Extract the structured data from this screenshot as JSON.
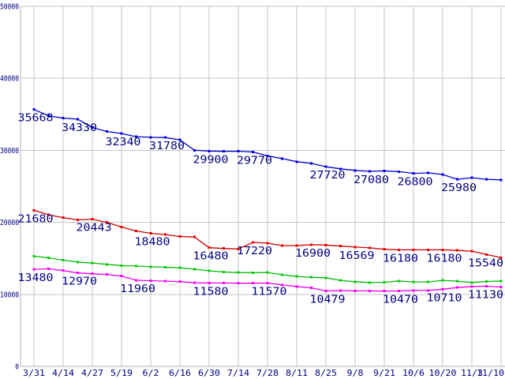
{
  "chart_data": {
    "type": "line",
    "title": "",
    "xlabel": "",
    "ylabel": "",
    "ylim": [
      0,
      50000
    ],
    "y_ticks": [
      0,
      10000,
      20000,
      30000,
      40000,
      50000
    ],
    "grid": true,
    "legend_position": "none",
    "num_points": 33,
    "x_tick_labels": [
      "3/31",
      "4/14",
      "4/27",
      "5/19",
      "6/2",
      "6/16",
      "6/30",
      "7/14",
      "7/28",
      "8/11",
      "8/25",
      "9/8",
      "9/21",
      "10/6",
      "10/20",
      "11/3",
      "11/10"
    ],
    "x_tick_point_indices": [
      1,
      3,
      5,
      7,
      9,
      11,
      13,
      15,
      17,
      19,
      21,
      23,
      25,
      27,
      29,
      31,
      33
    ],
    "note": "Four unlabeled-legend line series with square markers; on-chart value labels shown below selected points. Unlabeled point values estimated from plot.",
    "series": [
      {
        "name": "blue-series",
        "color": "#0000CC",
        "marker_color": "#0000E6",
        "values": [
          35668,
          34800,
          34470,
          34330,
          33160,
          32620,
          32340,
          31900,
          31810,
          31780,
          31450,
          30010,
          29900,
          29860,
          29880,
          29770,
          29230,
          28860,
          28420,
          28200,
          27720,
          27430,
          27220,
          27080,
          27150,
          27050,
          26800,
          26870,
          26650,
          25980,
          26200,
          25980,
          25900
        ],
        "labels": [
          {
            "point": 1,
            "text": "35668"
          },
          {
            "point": 4,
            "text": "34330"
          },
          {
            "point": 7,
            "text": "32340"
          },
          {
            "point": 10,
            "text": "31780"
          },
          {
            "point": 13,
            "text": "29900"
          },
          {
            "point": 16,
            "text": "29770"
          },
          {
            "point": 21,
            "text": "27720"
          },
          {
            "point": 24,
            "text": "27080"
          },
          {
            "point": 27,
            "text": "26800"
          },
          {
            "point": 30,
            "text": "25980"
          }
        ]
      },
      {
        "name": "red-series",
        "color": "#CC0000",
        "marker_color": "#EE0000",
        "values": [
          21680,
          21050,
          20650,
          20350,
          20443,
          20000,
          19350,
          18800,
          18480,
          18300,
          18040,
          17960,
          16480,
          16370,
          16300,
          17220,
          17110,
          16780,
          16780,
          16900,
          16850,
          16700,
          16569,
          16460,
          16260,
          16180,
          16180,
          16180,
          16180,
          16100,
          16000,
          15540,
          15100
        ],
        "labels": [
          {
            "point": 1,
            "text": "21680"
          },
          {
            "point": 5,
            "text": "20443"
          },
          {
            "point": 9,
            "text": "18480"
          },
          {
            "point": 13,
            "text": "16480"
          },
          {
            "point": 16,
            "text": "17220"
          },
          {
            "point": 20,
            "text": "16900"
          },
          {
            "point": 23,
            "text": "16569"
          },
          {
            "point": 26,
            "text": "16180"
          },
          {
            "point": 29,
            "text": "16180"
          },
          {
            "point": 32,
            "text": "15540"
          }
        ]
      },
      {
        "name": "green-series",
        "color": "#00BB00",
        "marker_color": "#00CC00",
        "values": [
          15300,
          15080,
          14750,
          14500,
          14340,
          14170,
          13990,
          13940,
          13830,
          13760,
          13700,
          13500,
          13270,
          13100,
          13030,
          13020,
          13040,
          12730,
          12480,
          12370,
          12300,
          11940,
          11750,
          11640,
          11670,
          11860,
          11720,
          11720,
          11940,
          11830,
          11650,
          11780,
          11860
        ],
        "labels": []
      },
      {
        "name": "magenta-series",
        "color": "#EE00EE",
        "marker_color": "#FF00FF",
        "values": [
          13480,
          13550,
          13300,
          12970,
          12860,
          12750,
          12540,
          11960,
          11900,
          11830,
          11760,
          11600,
          11580,
          11580,
          11550,
          11550,
          11570,
          11300,
          11100,
          10900,
          10479,
          10500,
          10480,
          10480,
          10450,
          10470,
          10540,
          10550,
          10710,
          10940,
          11100,
          11130,
          11020
        ],
        "labels": [
          {
            "point": 1,
            "text": "13480"
          },
          {
            "point": 4,
            "text": "12970"
          },
          {
            "point": 8,
            "text": "11960"
          },
          {
            "point": 13,
            "text": "11580"
          },
          {
            "point": 17,
            "text": "11570"
          },
          {
            "point": 21,
            "text": "10479"
          },
          {
            "point": 26,
            "text": "10470"
          },
          {
            "point": 29,
            "text": "10710"
          },
          {
            "point": 32,
            "text": "11130"
          }
        ]
      }
    ],
    "colors": {
      "background": "#FFFFFF",
      "grid": "#C6C6C6",
      "axis": "#B0B0B0",
      "tick_text": "#000080",
      "label_text": "#000080"
    }
  }
}
